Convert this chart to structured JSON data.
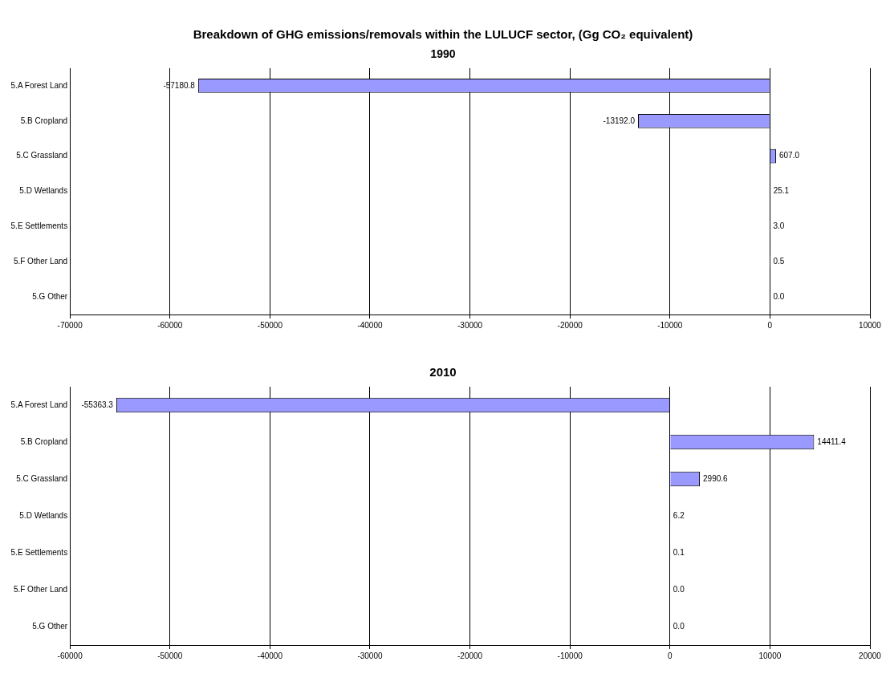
{
  "chart_data": [
    {
      "type": "bar",
      "orientation": "horizontal",
      "title": "Breakdown of GHG emissions/removals within the LULUCF sector, (Gg CO₂ equivalent)",
      "subtitle": "1990",
      "categories": [
        "5.A Forest Land",
        "5.B Cropland",
        "5.C Grassland",
        "5.D Wetlands",
        "5.E Settlements",
        "5.F Other Land",
        "5.G Other"
      ],
      "values": [
        -57180.8,
        -13192.0,
        607.0,
        25.1,
        3.0,
        0.5,
        0.0
      ],
      "value_labels": [
        "-57180.8",
        "-13192.0",
        "607.0",
        "25.1",
        "3.0",
        "0.5",
        "0.0"
      ],
      "color": "#9999ff",
      "xlim": [
        -70000,
        10000
      ],
      "xticks": [
        -70000,
        -60000,
        -50000,
        -40000,
        -30000,
        -20000,
        -10000,
        0,
        10000
      ],
      "grid": "x",
      "legend": false
    },
    {
      "type": "bar",
      "orientation": "horizontal",
      "title": "2010",
      "categories": [
        "5.A Forest Land",
        "5.B Cropland",
        "5.C Grassland",
        "5.D Wetlands",
        "5.E Settlements",
        "5.F Other Land",
        "5.G Other"
      ],
      "values": [
        -55363.3,
        14411.4,
        2990.6,
        6.2,
        0.1,
        0.0,
        0.0
      ],
      "value_labels": [
        "-55363.3",
        "14411.4",
        "2990.6",
        "6.2",
        "0.1",
        "0.0",
        "0.0"
      ],
      "color": "#9999ff",
      "xlim": [
        -60000,
        20000
      ],
      "xticks": [
        -60000,
        -50000,
        -40000,
        -30000,
        -20000,
        -10000,
        0,
        10000,
        20000
      ],
      "grid": "x",
      "legend": false
    }
  ]
}
